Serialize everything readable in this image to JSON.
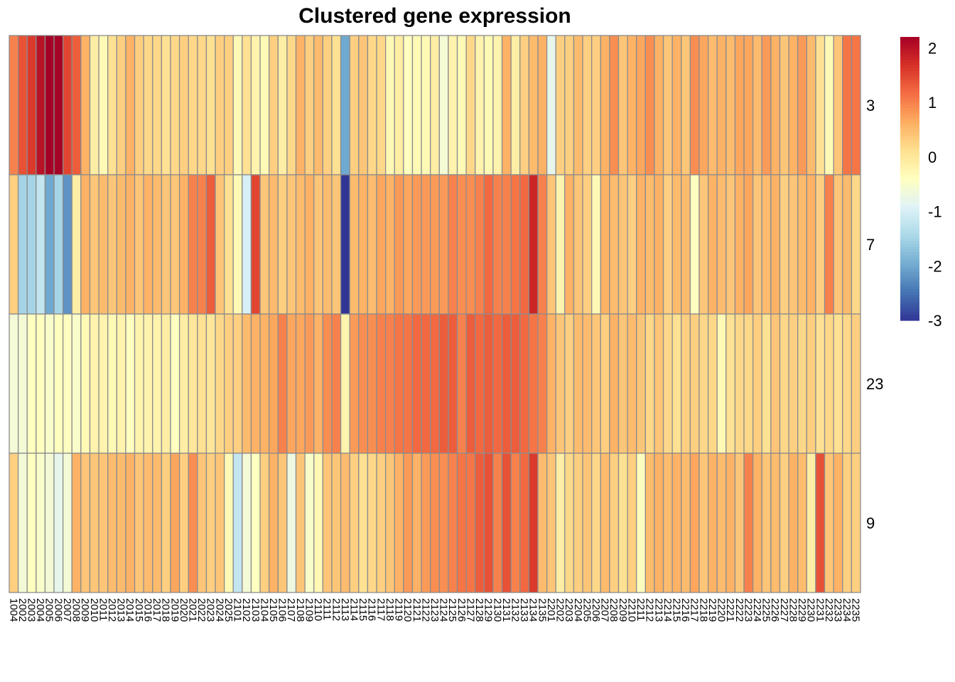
{
  "chart_data": {
    "type": "heatmap",
    "title": "Clustered gene expression",
    "rows": [
      "3",
      "7",
      "23",
      "9"
    ],
    "columns": [
      "1004",
      "2002",
      "2003",
      "2004",
      "2005",
      "2006",
      "2007",
      "2008",
      "2009",
      "2010",
      "2011",
      "2012",
      "2013",
      "2014",
      "2015",
      "2016",
      "2017",
      "2018",
      "2019",
      "2020",
      "2021",
      "2022",
      "2023",
      "2024",
      "2025",
      "2101",
      "2102",
      "2103",
      "2104",
      "2105",
      "2106",
      "2107",
      "2108",
      "2109",
      "2110",
      "2111",
      "2112",
      "2113",
      "2114",
      "2115",
      "2116",
      "2117",
      "2118",
      "2119",
      "2120",
      "2121",
      "2122",
      "2123",
      "2124",
      "2125",
      "2126",
      "2127",
      "2128",
      "2129",
      "2130",
      "2131",
      "2132",
      "2133",
      "2134",
      "2135",
      "2201",
      "2202",
      "2203",
      "2204",
      "2205",
      "2206",
      "2207",
      "2208",
      "2209",
      "2210",
      "2211",
      "2212",
      "2213",
      "2214",
      "2215",
      "2216",
      "2217",
      "2218",
      "2219",
      "2220",
      "2221",
      "2222",
      "2223",
      "2224",
      "2225",
      "2226",
      "2227",
      "2228",
      "2229",
      "2230",
      "2231",
      "2232",
      "2233",
      "2234",
      "2235"
    ],
    "values": [
      [
        1.0,
        1.4,
        1.6,
        2.0,
        2.2,
        2.2,
        1.5,
        1.3,
        0.6,
        -0.1,
        -0.3,
        0.1,
        0.3,
        0.6,
        0.3,
        0.2,
        0.2,
        0.1,
        0.2,
        0.3,
        0.2,
        0.2,
        0.1,
        0.3,
        0.3,
        -0.3,
        0.1,
        -0.2,
        -0.3,
        0.3,
        -0.1,
        0.2,
        0.6,
        0.3,
        0.5,
        0.3,
        0.1,
        -2.0,
        0.3,
        0.4,
        0.2,
        0.2,
        -0.3,
        -0.1,
        -0.4,
        -0.3,
        -0.3,
        -0.1,
        -0.6,
        -0.2,
        -0.3,
        0.2,
        -0.2,
        -0.3,
        -0.2,
        0.6,
        -0.1,
        0.3,
        0.5,
        0.6,
        -0.8,
        0.3,
        0.3,
        0.5,
        0.3,
        0.3,
        0.6,
        0.9,
        0.4,
        0.6,
        0.7,
        0.9,
        0.6,
        0.4,
        0.6,
        0.4,
        0.9,
        0.7,
        0.5,
        0.6,
        0.5,
        0.7,
        0.7,
        0.5,
        0.8,
        0.6,
        0.4,
        0.6,
        0.8,
        0.5,
        0.1,
        -0.3,
        0.4,
        1.1,
        1.1
      ],
      [
        0.3,
        -1.5,
        -1.5,
        -1.2,
        -2.0,
        -1.5,
        -2.2,
        -0.1,
        0.6,
        0.4,
        0.5,
        0.4,
        0.5,
        0.6,
        0.4,
        0.6,
        0.5,
        0.4,
        0.4,
        0.6,
        1.0,
        1.0,
        1.3,
        0.4,
        0.1,
        -0.3,
        -1.0,
        1.5,
        0.4,
        0.5,
        0.3,
        0.4,
        0.5,
        0.6,
        0.4,
        0.5,
        0.4,
        -3.0,
        0.5,
        0.6,
        0.5,
        0.7,
        0.6,
        0.8,
        0.7,
        0.8,
        0.8,
        0.8,
        0.8,
        1.0,
        0.9,
        0.9,
        1.0,
        1.2,
        1.0,
        1.0,
        1.1,
        1.2,
        1.8,
        1.0,
        0.4,
        -0.2,
        0.6,
        0.4,
        0.3,
        -0.3,
        0.6,
        0.5,
        0.4,
        0.3,
        0.6,
        0.5,
        0.6,
        0.3,
        0.5,
        0.5,
        -0.4,
        0.4,
        0.6,
        0.5,
        0.4,
        0.6,
        0.7,
        0.4,
        0.5,
        0.6,
        0.3,
        0.4,
        0.5,
        0.6,
        0.3,
        1.0,
        0.4,
        0.5,
        0.2
      ],
      [
        -0.6,
        -0.6,
        -0.4,
        -0.4,
        -0.5,
        -0.4,
        -0.4,
        -0.5,
        -0.3,
        -0.2,
        -0.2,
        -0.3,
        -0.2,
        -0.4,
        -0.2,
        -0.2,
        -0.2,
        -0.1,
        -0.4,
        -0.1,
        0.0,
        0.1,
        0.0,
        0.2,
        0.3,
        0.3,
        0.5,
        0.6,
        0.6,
        0.7,
        1.0,
        0.7,
        0.7,
        0.8,
        0.6,
        0.9,
        1.0,
        -0.2,
        0.8,
        0.9,
        0.9,
        1.0,
        1.0,
        1.1,
        1.1,
        1.2,
        1.2,
        1.2,
        1.3,
        1.3,
        1.0,
        1.3,
        1.2,
        1.3,
        1.2,
        1.3,
        1.3,
        1.2,
        1.1,
        1.0,
        0.6,
        0.4,
        0.3,
        0.5,
        0.5,
        0.4,
        0.3,
        0.6,
        0.4,
        0.5,
        0.4,
        0.2,
        0.4,
        0.2,
        0.1,
        0.3,
        0.3,
        0.2,
        0.2,
        -0.3,
        0.1,
        0.2,
        0.2,
        0.3,
        0.1,
        0.4,
        0.2,
        0.3,
        0.2,
        0.3,
        0.1,
        0.2,
        0.1,
        0.2,
        0.3
      ],
      [
        0.3,
        -0.6,
        -0.4,
        -0.5,
        -0.6,
        -0.8,
        -0.6,
        0.6,
        0.4,
        0.4,
        0.4,
        0.5,
        0.5,
        0.6,
        0.4,
        0.5,
        0.5,
        0.3,
        0.7,
        0.3,
        0.9,
        0.4,
        0.3,
        0.4,
        -0.3,
        -1.2,
        -0.6,
        -0.4,
        0.3,
        0.6,
        0.4,
        -0.7,
        0.4,
        -0.5,
        -0.3,
        0.4,
        0.4,
        0.5,
        0.3,
        0.1,
        0.2,
        0.3,
        0.4,
        0.6,
        0.8,
        0.6,
        0.8,
        0.9,
        0.9,
        1.0,
        1.1,
        1.1,
        1.3,
        1.4,
        1.0,
        1.4,
        1.0,
        1.2,
        1.6,
        0.5,
        0.4,
        -0.1,
        0.2,
        0.3,
        0.4,
        0.2,
        0.5,
        0.3,
        0.1,
        0.3,
        -0.4,
        0.5,
        0.6,
        0.5,
        0.6,
        0.5,
        0.7,
        0.4,
        0.6,
        0.5,
        0.6,
        0.4,
        1.0,
        0.6,
        0.4,
        0.5,
        0.3,
        0.6,
        0.5,
        -0.1,
        1.4,
        0.4,
        0.6,
        0.3,
        0.3
      ]
    ],
    "legend": {
      "ticks": [
        "2",
        "1",
        "0",
        "-1",
        "-2",
        "-3"
      ],
      "min": -3,
      "max": 2.2,
      "placement": "right"
    },
    "colors": [
      "#313695",
      "#4575b4",
      "#74add1",
      "#abd9e9",
      "#e0f3f8",
      "#ffffbf",
      "#fee090",
      "#fdae61",
      "#f46d43",
      "#d73027",
      "#a50026"
    ],
    "grid_color": "#8c8c8c"
  }
}
